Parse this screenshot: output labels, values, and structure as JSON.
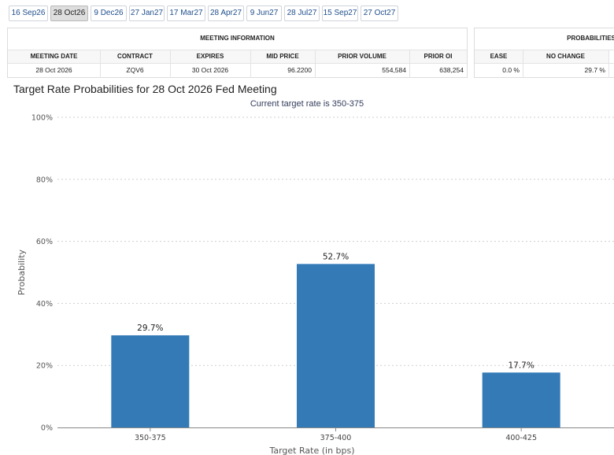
{
  "tabs": [
    {
      "label": "16 Sep26",
      "active": false
    },
    {
      "label": "28 Oct26",
      "active": true
    },
    {
      "label": "9 Dec26",
      "active": false
    },
    {
      "label": "27 Jan27",
      "active": false
    },
    {
      "label": "17 Mar27",
      "active": false
    },
    {
      "label": "28 Apr27",
      "active": false
    },
    {
      "label": "9 Jun27",
      "active": false
    },
    {
      "label": "28 Jul27",
      "active": false
    },
    {
      "label": "15 Sep27",
      "active": false
    },
    {
      "label": "27 Oct27",
      "active": false
    }
  ],
  "meeting_info": {
    "title": "MEETING INFORMATION",
    "headers": [
      "MEETING DATE",
      "CONTRACT",
      "EXPIRES",
      "MID PRICE",
      "PRIOR VOLUME",
      "PRIOR OI"
    ],
    "row": [
      "28 Oct 2026",
      "ZQV6",
      "30 Oct 2026",
      "96.2200",
      "554,584",
      "638,254"
    ]
  },
  "probabilities": {
    "title": "PROBABILITIES",
    "headers": [
      "EASE",
      "NO CHANGE"
    ],
    "row": [
      "0.0 %",
      "29.7 %"
    ]
  },
  "chart_data": {
    "type": "bar",
    "title": "Target Rate Probabilities for 28 Oct 2026 Fed Meeting",
    "subtitle": "Current target rate is 350-375",
    "xlabel": "Target Rate (in bps)",
    "ylabel": "Probability",
    "categories": [
      "350-375",
      "375-400",
      "400-425"
    ],
    "values": [
      29.7,
      52.7,
      17.7
    ],
    "value_labels": [
      "29.7%",
      "52.7%",
      "17.7%"
    ],
    "ylim": [
      0,
      100
    ],
    "yticks": [
      0,
      20,
      40,
      60,
      80,
      100
    ],
    "ytick_labels": [
      "0%",
      "20%",
      "40%",
      "60%",
      "80%",
      "100%"
    ],
    "grid": true,
    "bar_color": "#337ab7"
  }
}
